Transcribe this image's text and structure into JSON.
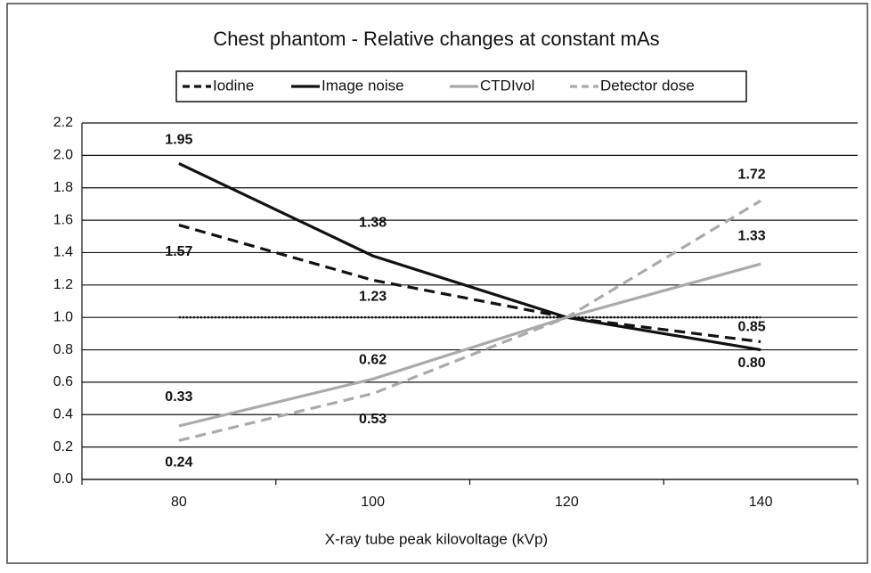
{
  "chart_data": {
    "type": "line",
    "title": "Chest phantom - Relative changes at constant mAs",
    "x_label": "X-ray tube peak kilovoltage (kVp)",
    "categories": [
      "80",
      "100",
      "120",
      "140"
    ],
    "series": [
      {
        "name": "Iodine",
        "color": "#111111",
        "dashed": true,
        "values": [
          1.57,
          1.23,
          1.0,
          0.85
        ],
        "value_labels": [
          "1.57",
          "1.23",
          null,
          "0.85"
        ]
      },
      {
        "name": "Image noise",
        "color": "#111111",
        "dashed": false,
        "values": [
          1.95,
          1.38,
          1.0,
          0.8
        ],
        "value_labels": [
          "1.95",
          "1.38",
          null,
          "0.80"
        ]
      },
      {
        "name": "CTDIvol",
        "color": "#aaaaaa",
        "dashed": false,
        "values": [
          0.33,
          0.62,
          1.0,
          1.33
        ],
        "value_labels": [
          "0.33",
          "0.62",
          null,
          "1.33"
        ]
      },
      {
        "name": "Detector dose",
        "color": "#aaaaaa",
        "dashed": true,
        "values": [
          0.24,
          0.53,
          1.0,
          1.72
        ],
        "value_labels": [
          "0.24",
          "0.53",
          null,
          "1.72"
        ]
      }
    ],
    "reference_line": 1,
    "ylim": [
      0,
      2.2
    ],
    "yticks": [
      {
        "value": 0,
        "label": "0.0"
      },
      0.2,
      0.4,
      0.6,
      0.8,
      {
        "value": 1,
        "label": "1.0"
      },
      1.2,
      1.4,
      1.6,
      1.8,
      {
        "value": 2,
        "label": "2.0"
      },
      2.2
    ],
    "grid": true,
    "legend": "top"
  }
}
